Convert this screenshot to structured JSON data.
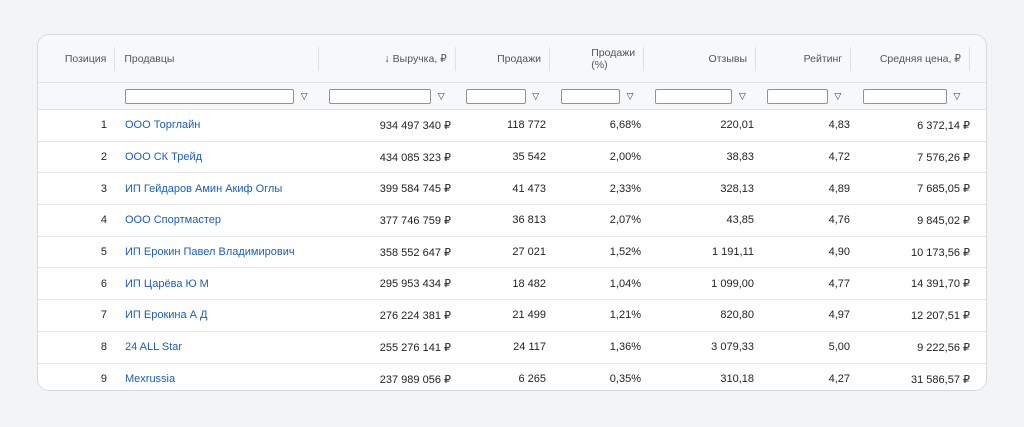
{
  "headers": {
    "position": "Позиция",
    "sellers": "Продавцы",
    "revenue_arrow": "↓",
    "revenue": "Выручка, ₽",
    "sales": "Продажи",
    "sales_pct_line1": "Продажи",
    "sales_pct_line2": "(%)",
    "reviews": "Отзывы",
    "rating": "Рейтинг",
    "avg_price": "Средняя цена, ₽"
  },
  "filter_icon": "filter-icon",
  "filter_glyph": "▽",
  "rows": [
    {
      "pos": "1",
      "seller": "ООО Торглайн",
      "revenue": "934 497 340 ₽",
      "sales": "118 772",
      "pct": "6,68%",
      "reviews": "220,01",
      "rating": "4,83",
      "price": "6 372,14 ₽"
    },
    {
      "pos": "2",
      "seller": "ООО СК Трейд",
      "revenue": "434 085 323 ₽",
      "sales": "35 542",
      "pct": "2,00%",
      "reviews": "38,83",
      "rating": "4,72",
      "price": "7 576,26 ₽"
    },
    {
      "pos": "3",
      "seller": "ИП Гейдаров Амин Акиф Оглы",
      "revenue": "399 584 745 ₽",
      "sales": "41 473",
      "pct": "2,33%",
      "reviews": "328,13",
      "rating": "4,89",
      "price": "7 685,05 ₽"
    },
    {
      "pos": "4",
      "seller": "ООО Спортмастер",
      "revenue": "377 746 759 ₽",
      "sales": "36 813",
      "pct": "2,07%",
      "reviews": "43,85",
      "rating": "4,76",
      "price": "9 845,02 ₽"
    },
    {
      "pos": "5",
      "seller": "ИП Ерокин Павел Владимирович",
      "revenue": "358 552 647 ₽",
      "sales": "27 021",
      "pct": "1,52%",
      "reviews": "1 191,11",
      "rating": "4,90",
      "price": "10 173,56 ₽"
    },
    {
      "pos": "6",
      "seller": "ИП Царёва Ю М",
      "revenue": "295 953 434 ₽",
      "sales": "18 482",
      "pct": "1,04%",
      "reviews": "1 099,00",
      "rating": "4,77",
      "price": "14 391,70 ₽"
    },
    {
      "pos": "7",
      "seller": "ИП Ерокина А Д",
      "revenue": "276 224 381 ₽",
      "sales": "21 499",
      "pct": "1,21%",
      "reviews": "820,80",
      "rating": "4,97",
      "price": "12 207,51 ₽"
    },
    {
      "pos": "8",
      "seller": "24 ALL Star",
      "revenue": "255 276 141 ₽",
      "sales": "24 117",
      "pct": "1,36%",
      "reviews": "3 079,33",
      "rating": "5,00",
      "price": "9 222,56 ₽"
    },
    {
      "pos": "9",
      "seller": "Mexrussia",
      "revenue": "237 989 056 ₽",
      "sales": "6 265",
      "pct": "0,35%",
      "reviews": "310,18",
      "rating": "4,27",
      "price": "31 586,57 ₽"
    }
  ]
}
